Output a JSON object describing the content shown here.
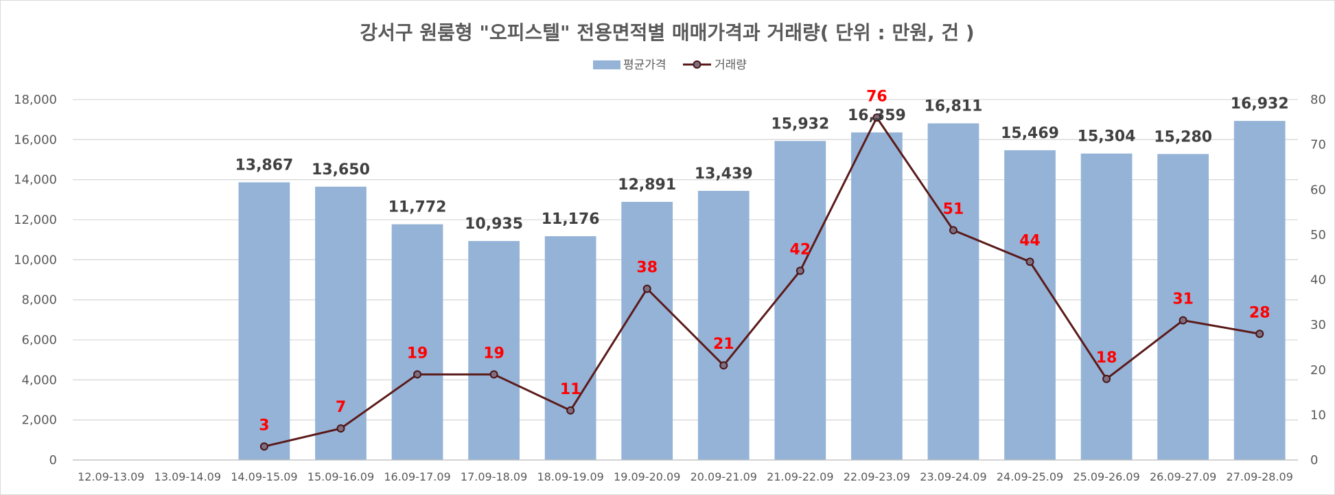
{
  "chart_data": {
    "type": "bar",
    "title": "강서구 원룸형 \"오피스텔\" 전용면적별 매매가격과 거래량( 단위 : 만원, 건 )",
    "categories": [
      "12.09-13.09",
      "13.09-14.09",
      "14.09-15.09",
      "15.09-16.09",
      "16.09-17.09",
      "17.09-18.09",
      "18.09-19.09",
      "19.09-20.09",
      "20.09-21.09",
      "21.09-22.09",
      "22.09-23.09",
      "23.09-24.09",
      "24.09-25.09",
      "25.09-26.09",
      "26.09-27.09",
      "27.09-28.09"
    ],
    "series": [
      {
        "name": "평균가격",
        "type": "bar",
        "axis": "left",
        "color": "#95b3d7",
        "values": [
          null,
          null,
          13867,
          13650,
          11772,
          10935,
          11176,
          12891,
          13439,
          15932,
          16359,
          16811,
          15469,
          15304,
          15280,
          16932
        ],
        "labels": [
          "",
          "",
          "13,867",
          "13,650",
          "11,772",
          "10,935",
          "11,176",
          "12,891",
          "13,439",
          "15,932",
          "16,359",
          "16,811",
          "15,469",
          "15,304",
          "15,280",
          "16,932"
        ]
      },
      {
        "name": "거래량",
        "type": "line",
        "axis": "right",
        "color": "#5b1a1a",
        "values": [
          null,
          null,
          3,
          7,
          19,
          19,
          11,
          38,
          21,
          42,
          76,
          51,
          44,
          18,
          31,
          28
        ],
        "labels": [
          "",
          "",
          "3",
          "7",
          "19",
          "19",
          "11",
          "38",
          "21",
          "42",
          "76",
          "51",
          "44",
          "18",
          "31",
          "28"
        ]
      }
    ],
    "y_left": {
      "min": 0,
      "max": 18000,
      "ticks": [
        0,
        2000,
        4000,
        6000,
        8000,
        10000,
        12000,
        14000,
        16000,
        18000
      ],
      "tick_labels": [
        "0",
        "2,000",
        "4,000",
        "6,000",
        "8,000",
        "10,000",
        "12,000",
        "14,000",
        "16,000",
        "18,000"
      ]
    },
    "y_right": {
      "min": 0,
      "max": 80,
      "ticks": [
        0,
        10,
        20,
        30,
        40,
        50,
        60,
        70,
        80
      ],
      "tick_labels": [
        "0",
        "10",
        "20",
        "30",
        "40",
        "50",
        "60",
        "70",
        "80"
      ]
    },
    "grid": true,
    "legend": "top-center",
    "colors": {
      "bar": "#95b3d7",
      "line": "#5b1a1a",
      "marker_fill": "#7f6f82",
      "line_label": "#ff0000",
      "grid": "#d9d9d9"
    }
  }
}
